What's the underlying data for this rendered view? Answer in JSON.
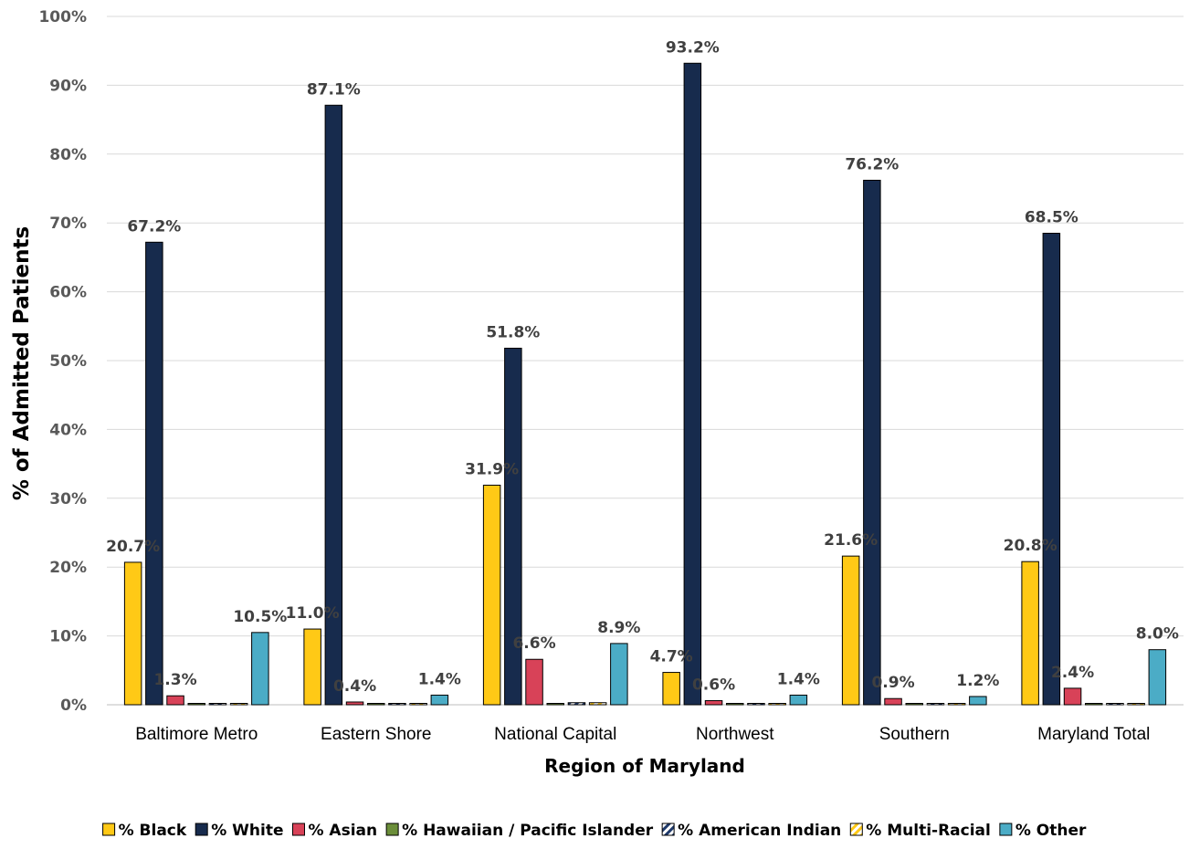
{
  "chart_data": {
    "type": "bar",
    "xlabel": "Region of Maryland",
    "ylabel": "% of Admitted Patients",
    "ylim": [
      0,
      100
    ],
    "yticks": [
      "0%",
      "10%",
      "20%",
      "30%",
      "40%",
      "50%",
      "60%",
      "70%",
      "80%",
      "90%",
      "100%"
    ],
    "grid": true,
    "legend_position": "bottom",
    "categories": [
      "Baltimore Metro",
      "Eastern Shore",
      "National Capital",
      "Northwest",
      "Southern",
      "Maryland Total"
    ],
    "series": [
      {
        "name": "% Black",
        "color": "#FFC916",
        "values": [
          20.7,
          11.0,
          31.9,
          4.7,
          21.6,
          20.8
        ],
        "labels": [
          "20.7%",
          "11.0%",
          "31.9%",
          "4.7%",
          "21.6%",
          "20.8%"
        ]
      },
      {
        "name": "% White",
        "color": "#172B4D",
        "values": [
          67.2,
          87.1,
          51.8,
          93.2,
          76.2,
          68.5
        ],
        "labels": [
          "67.2%",
          "87.1%",
          "51.8%",
          "93.2%",
          "76.2%",
          "68.5%"
        ]
      },
      {
        "name": "% Asian",
        "color": "#D84258",
        "values": [
          1.3,
          0.4,
          6.6,
          0.6,
          0.9,
          2.4
        ],
        "labels": [
          "1.3%",
          "0.4%",
          "6.6%",
          "0.6%",
          "0.9%",
          "2.4%"
        ]
      },
      {
        "name": "% Hawaiian / Pacific Islander",
        "color": "#6B8E3A",
        "values": [
          0.1,
          0.0,
          0.1,
          0.1,
          0.0,
          0.1
        ],
        "labels": [
          "",
          "",
          "",
          "",
          "",
          ""
        ]
      },
      {
        "name": "% American Indian",
        "color": "#1F3A6B",
        "pattern": "diagonal",
        "values": [
          0.1,
          0.1,
          0.3,
          0.0,
          0.1,
          0.1
        ],
        "labels": [
          "",
          "",
          "",
          "",
          "",
          ""
        ]
      },
      {
        "name": "% Multi-Racial",
        "color": "#FFC916",
        "pattern": "diagonal-light",
        "values": [
          0.1,
          0.1,
          0.3,
          0.0,
          0.1,
          0.1
        ],
        "labels": [
          "",
          "",
          "",
          "",
          "",
          ""
        ]
      },
      {
        "name": "% Other",
        "color": "#4BACC6",
        "values": [
          10.5,
          1.4,
          8.9,
          1.4,
          1.2,
          8.0
        ],
        "labels": [
          "10.5%",
          "1.4%",
          "8.9%",
          "1.4%",
          "1.2%",
          "8.0%"
        ]
      }
    ]
  }
}
